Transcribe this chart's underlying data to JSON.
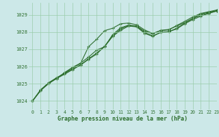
{
  "title": "Graphe pression niveau de la mer (hPa)",
  "background_color": "#cce8d0",
  "plot_bg_color": "#cce8e8",
  "grid_color": "#99ccaa",
  "line_color": "#2d6e2d",
  "xlim": [
    -0.5,
    23
  ],
  "ylim": [
    1023.5,
    1029.7
  ],
  "yticks": [
    1024,
    1025,
    1026,
    1027,
    1028,
    1029
  ],
  "xticks": [
    0,
    1,
    2,
    3,
    4,
    5,
    6,
    7,
    8,
    9,
    10,
    11,
    12,
    13,
    14,
    15,
    16,
    17,
    18,
    19,
    20,
    21,
    22,
    23
  ],
  "series": [
    [
      1024.0,
      1024.6,
      1025.0,
      1025.3,
      1025.65,
      1025.95,
      1026.2,
      1026.55,
      1026.95,
      1027.15,
      1027.85,
      1028.25,
      1028.4,
      1028.35,
      1028.05,
      1027.9,
      1028.1,
      1028.15,
      1028.35,
      1028.55,
      1028.8,
      1029.05,
      1029.15,
      1029.25
    ],
    [
      1024.0,
      1024.6,
      1025.05,
      1025.35,
      1025.6,
      1025.85,
      1026.1,
      1026.45,
      1026.78,
      1027.15,
      1027.75,
      1028.1,
      1028.35,
      1028.3,
      1027.92,
      1027.75,
      1027.98,
      1028.02,
      1028.22,
      1028.52,
      1028.78,
      1028.98,
      1029.12,
      1029.22
    ],
    [
      1024.0,
      1024.6,
      1025.05,
      1025.3,
      1025.55,
      1025.82,
      1026.08,
      1026.42,
      1026.72,
      1027.18,
      1027.78,
      1028.18,
      1028.38,
      1028.33,
      1027.98,
      1027.78,
      1027.98,
      1028.02,
      1028.18,
      1028.48,
      1028.72,
      1028.92,
      1029.08,
      1029.22
    ],
    [
      1024.0,
      1024.65,
      1025.05,
      1025.32,
      1025.62,
      1025.92,
      1026.18,
      1027.15,
      1027.58,
      1028.08,
      1028.22,
      1028.48,
      1028.52,
      1028.42,
      1028.12,
      1027.92,
      1028.08,
      1028.12,
      1028.38,
      1028.62,
      1028.88,
      1029.08,
      1029.18,
      1029.28
    ]
  ]
}
